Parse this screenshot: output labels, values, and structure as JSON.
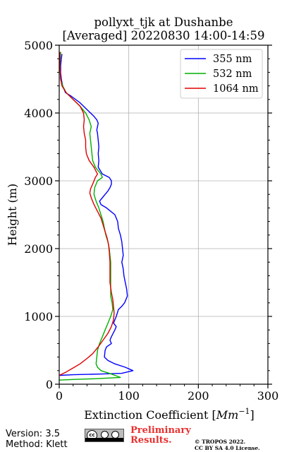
{
  "chart_data": {
    "type": "line",
    "title": "pollyxt_tjk at Dushanbe",
    "subtitle": "[Averaged] 20220830 14:00-14:59",
    "xlabel": "Extinction Coefficient [Mm⁻¹]",
    "xlabel_base": "Extinction Coefficient [",
    "xlabel_unit": "Mm",
    "xlabel_exp": "−1",
    "xlabel_close": "]",
    "ylabel": "Height (m)",
    "xlim": [
      0,
      300
    ],
    "ylim": [
      0,
      5000
    ],
    "xticks": [
      0,
      100,
      200,
      300
    ],
    "yticks": [
      0,
      1000,
      2000,
      3000,
      4000,
      5000
    ],
    "grid": true,
    "legend_position": "top-right",
    "series": [
      {
        "name": "355 nm",
        "color": "#0000ff",
        "points": [
          [
            1,
            130
          ],
          [
            20,
            140
          ],
          [
            60,
            150
          ],
          [
            90,
            160
          ],
          [
            106,
            200
          ],
          [
            95,
            250
          ],
          [
            80,
            300
          ],
          [
            70,
            350
          ],
          [
            65,
            400
          ],
          [
            66,
            500
          ],
          [
            68,
            550
          ],
          [
            75,
            600
          ],
          [
            73,
            650
          ],
          [
            75,
            700
          ],
          [
            80,
            800
          ],
          [
            82,
            850
          ],
          [
            78,
            900
          ],
          [
            82,
            1000
          ],
          [
            85,
            1100
          ],
          [
            90,
            1150
          ],
          [
            94,
            1200
          ],
          [
            98,
            1300
          ],
          [
            97,
            1400
          ],
          [
            95,
            1500
          ],
          [
            93,
            1600
          ],
          [
            92,
            1700
          ],
          [
            90,
            1800
          ],
          [
            92,
            1900
          ],
          [
            91,
            2000
          ],
          [
            90,
            2100
          ],
          [
            88,
            2200
          ],
          [
            85,
            2300
          ],
          [
            84,
            2400
          ],
          [
            80,
            2500
          ],
          [
            74,
            2550
          ],
          [
            68,
            2600
          ],
          [
            60,
            2650
          ],
          [
            58,
            2700
          ],
          [
            62,
            2750
          ],
          [
            66,
            2800
          ],
          [
            70,
            2850
          ],
          [
            73,
            2900
          ],
          [
            75,
            2950
          ],
          [
            75,
            3000
          ],
          [
            72,
            3050
          ],
          [
            62,
            3100
          ],
          [
            56,
            3200
          ],
          [
            57,
            3300
          ],
          [
            56,
            3400
          ],
          [
            57,
            3500
          ],
          [
            56,
            3600
          ],
          [
            55,
            3700
          ],
          [
            54,
            3750
          ],
          [
            55,
            3800
          ],
          [
            56,
            3850
          ],
          [
            54,
            3900
          ],
          [
            50,
            3950
          ],
          [
            40,
            4050
          ],
          [
            30,
            4150
          ],
          [
            17,
            4250
          ],
          [
            9,
            4300
          ],
          [
            7,
            4350
          ],
          [
            5,
            4400
          ],
          [
            3,
            4500
          ],
          [
            2,
            4600
          ],
          [
            2,
            4700
          ],
          [
            3,
            4800
          ],
          [
            4,
            4870
          ]
        ]
      },
      {
        "name": "532 nm",
        "color": "#00b000",
        "points": [
          [
            0,
            60
          ],
          [
            20,
            70
          ],
          [
            50,
            80
          ],
          [
            88,
            100
          ],
          [
            75,
            150
          ],
          [
            60,
            200
          ],
          [
            55,
            250
          ],
          [
            53,
            300
          ],
          [
            54,
            400
          ],
          [
            55,
            500
          ],
          [
            58,
            600
          ],
          [
            62,
            700
          ],
          [
            66,
            800
          ],
          [
            70,
            900
          ],
          [
            74,
            1000
          ],
          [
            77,
            1100
          ],
          [
            76,
            1200
          ],
          [
            74,
            1300
          ],
          [
            74,
            1400
          ],
          [
            74,
            1500
          ],
          [
            74,
            1600
          ],
          [
            74,
            1700
          ],
          [
            74,
            1800
          ],
          [
            73,
            1900
          ],
          [
            72,
            2000
          ],
          [
            70,
            2100
          ],
          [
            67,
            2200
          ],
          [
            65,
            2300
          ],
          [
            63,
            2400
          ],
          [
            60,
            2500
          ],
          [
            57,
            2600
          ],
          [
            53,
            2700
          ],
          [
            50,
            2800
          ],
          [
            51,
            2900
          ],
          [
            55,
            3000
          ],
          [
            62,
            3050
          ],
          [
            60,
            3100
          ],
          [
            52,
            3200
          ],
          [
            48,
            3300
          ],
          [
            47,
            3400
          ],
          [
            46,
            3500
          ],
          [
            45,
            3600
          ],
          [
            44,
            3700
          ],
          [
            46,
            3800
          ],
          [
            43,
            3900
          ],
          [
            38,
            4000
          ],
          [
            30,
            4100
          ],
          [
            20,
            4200
          ],
          [
            10,
            4300
          ],
          [
            5,
            4400
          ],
          [
            2,
            4500
          ],
          [
            1,
            4700
          ],
          [
            2,
            4900
          ]
        ]
      },
      {
        "name": "1064 nm",
        "color": "#e00000",
        "points": [
          [
            0,
            130
          ],
          [
            10,
            180
          ],
          [
            20,
            240
          ],
          [
            30,
            300
          ],
          [
            40,
            380
          ],
          [
            48,
            450
          ],
          [
            56,
            550
          ],
          [
            63,
            650
          ],
          [
            70,
            750
          ],
          [
            75,
            850
          ],
          [
            78,
            950
          ],
          [
            79,
            1050
          ],
          [
            78,
            1150
          ],
          [
            77,
            1250
          ],
          [
            75,
            1350
          ],
          [
            73,
            1500
          ],
          [
            73,
            1650
          ],
          [
            73,
            1800
          ],
          [
            72,
            1950
          ],
          [
            71,
            2050
          ],
          [
            69,
            2150
          ],
          [
            66,
            2250
          ],
          [
            63,
            2350
          ],
          [
            60,
            2450
          ],
          [
            55,
            2550
          ],
          [
            50,
            2650
          ],
          [
            46,
            2750
          ],
          [
            44,
            2820
          ],
          [
            45,
            2880
          ],
          [
            48,
            2950
          ],
          [
            52,
            3050
          ],
          [
            55,
            3100
          ],
          [
            50,
            3200
          ],
          [
            43,
            3300
          ],
          [
            39,
            3400
          ],
          [
            38,
            3500
          ],
          [
            38,
            3600
          ],
          [
            36,
            3700
          ],
          [
            35,
            3800
          ],
          [
            36,
            3900
          ],
          [
            35,
            4000
          ],
          [
            30,
            4100
          ],
          [
            20,
            4200
          ],
          [
            10,
            4300
          ],
          [
            4,
            4400
          ],
          [
            2,
            4500
          ],
          [
            1,
            4700
          ],
          [
            1,
            4900
          ]
        ]
      }
    ]
  },
  "footer": {
    "version": "Version: 3.5",
    "method": "Method: Klett",
    "preliminary_line1": "Preliminary",
    "preliminary_line2": "Results.",
    "copyright_line1": "© TROPOS 2022.",
    "copyright_line2": "CC BY SA 4.0 License.",
    "license_badge": {
      "cc": "cc"
    }
  }
}
